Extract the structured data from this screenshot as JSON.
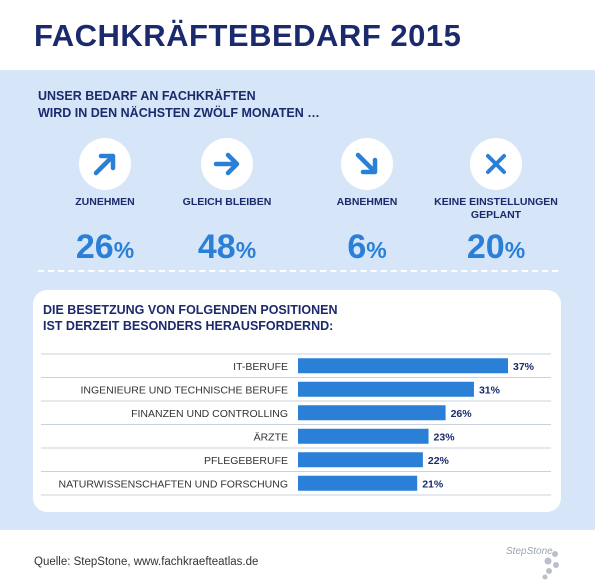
{
  "title": "FACHKRÄFTEBEDARF 2015",
  "intro": {
    "line1": "UNSER BEDARF AN FACHKRÄFTEN",
    "line2": "WIRD IN DEN NÄCHSTEN ZWÖLF MONATEN …"
  },
  "forecast": [
    {
      "icon": "arrow-up-right-icon",
      "label": "ZUNEHMEN",
      "value": "26",
      "unit": "%"
    },
    {
      "icon": "arrow-right-icon",
      "label": "GLEICH BLEIBEN",
      "value": "48",
      "unit": "%"
    },
    {
      "icon": "arrow-down-right-icon",
      "label": "ABNEHMEN",
      "value": "6",
      "unit": "%"
    },
    {
      "icon": "cross-icon",
      "label": "KEINE EINSTELLUNGEN GEPLANT",
      "value": "20",
      "unit": "%"
    }
  ],
  "chart_title": {
    "line1": "DIE BESETZUNG VON FOLGENDEN POSITIONEN",
    "line2": "IST DERZEIT BESONDERS HERAUSFORDERND:"
  },
  "chart_data": {
    "type": "bar",
    "orientation": "horizontal",
    "categories": [
      "IT-BERUFE",
      "INGENIEURE UND TECHNISCHE BERUFE",
      "FINANZEN UND CONTROLLING",
      "ÄRZTE",
      "PFLEGEBERUFE",
      "NATURWISSENSCHAFTEN UND FORSCHUNG"
    ],
    "values": [
      37,
      31,
      26,
      23,
      22,
      21
    ],
    "value_labels": [
      "37%",
      "31%",
      "26%",
      "23%",
      "22%",
      "21%"
    ],
    "unit": "%",
    "bar_color": "#2a7fd6"
  },
  "source": "Quelle: StepStone, www.fachkraefteatlas.de",
  "logo": "StepStone",
  "colors": {
    "title": "#1a2a6c",
    "accent": "#2a7fd6",
    "panel": "#d6e6f8"
  }
}
